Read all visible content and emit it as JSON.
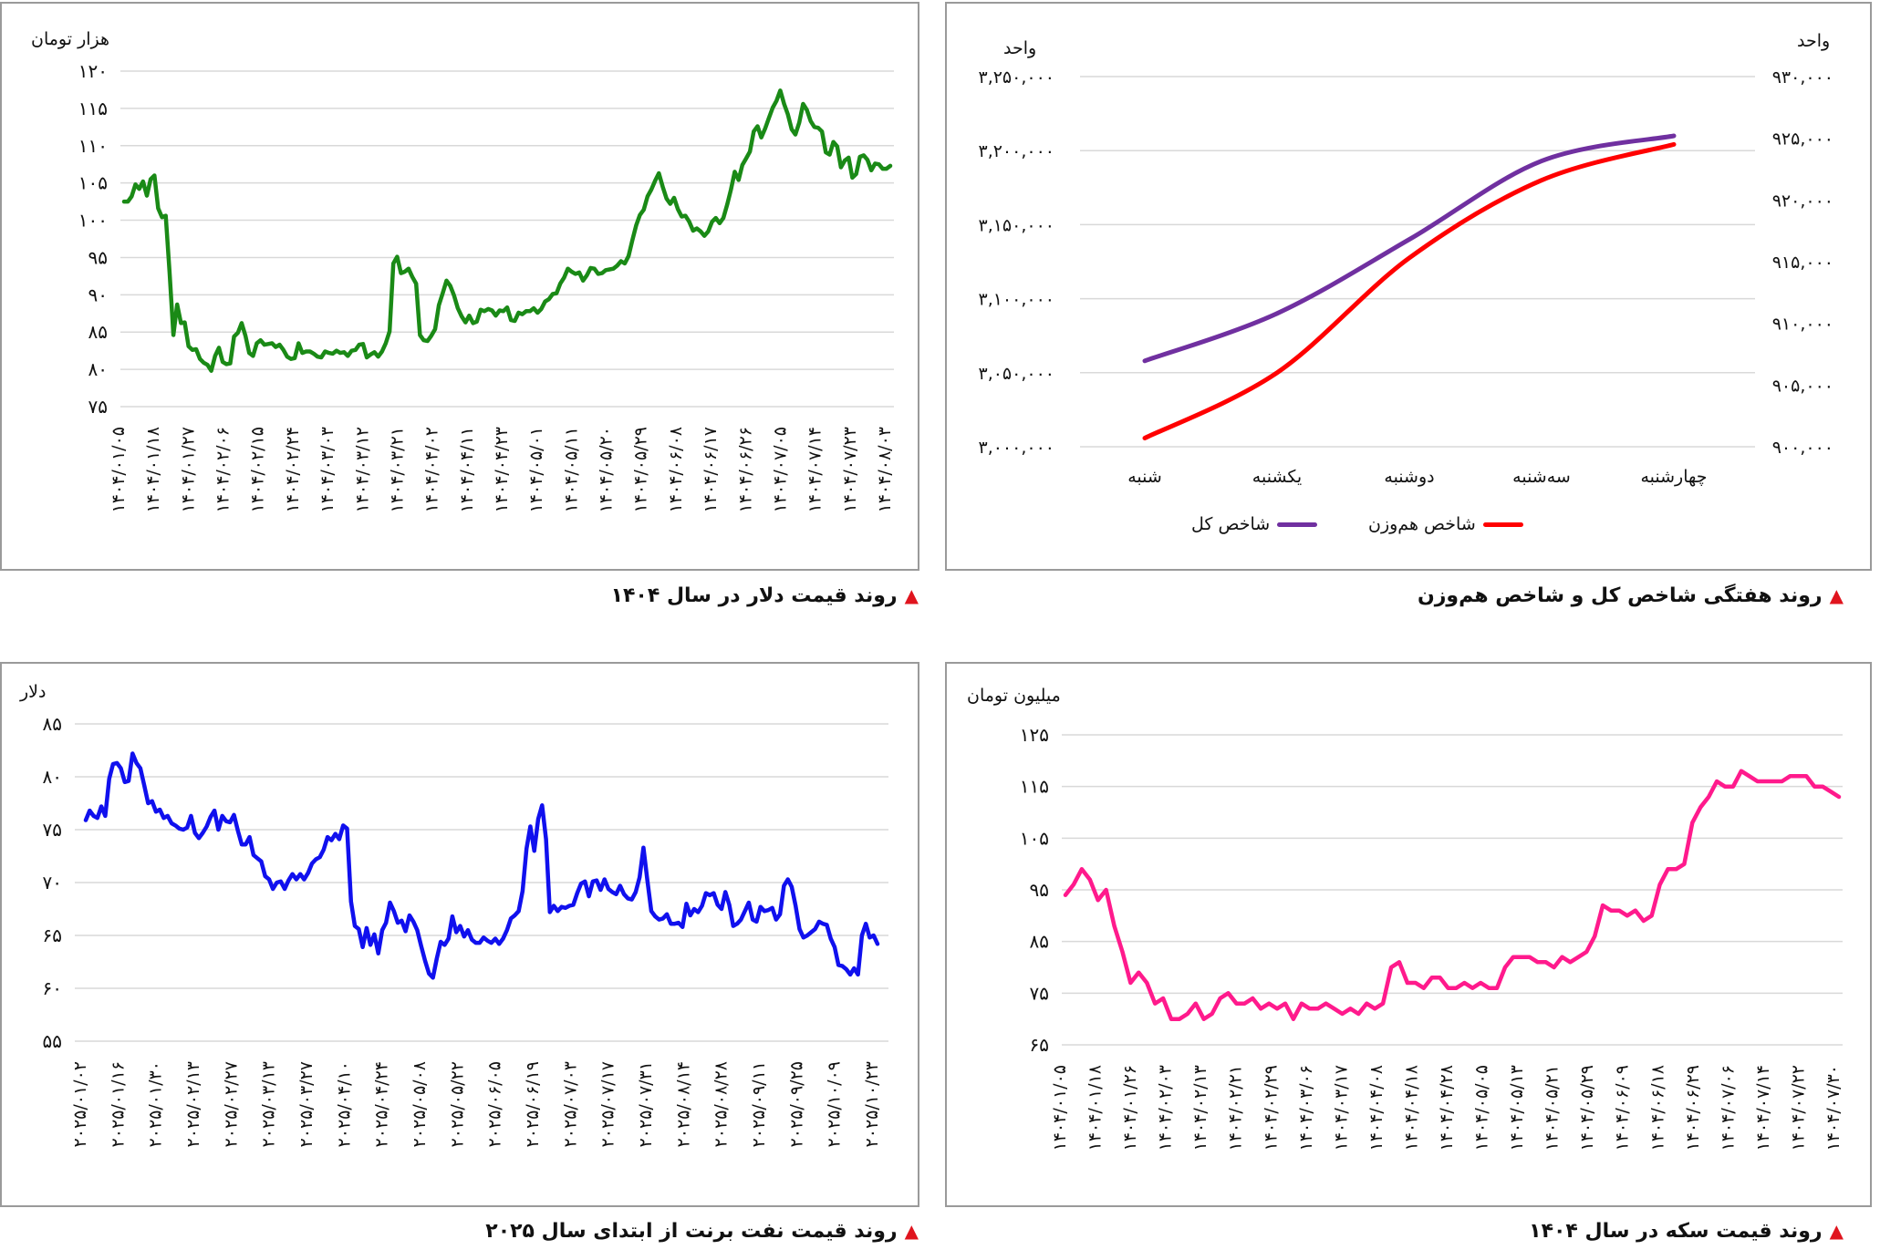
{
  "captions": {
    "index": "روند هفتگی شاخص کل و شاخص هم‌وزن",
    "dollar": "روند قیمت دلار در سال ۱۴۰۴",
    "coin": "روند قیمت سکه در سال ۱۴۰۴",
    "brent": "روند قیمت نفت برنت از ابتدای سال ۲۰۲۵"
  },
  "colors": {
    "triangle": "#e0141e",
    "purple": "#7030a0",
    "red": "#ff0000",
    "green": "#1a8a16",
    "pink": "#ff1a8c",
    "blue": "#1010ee"
  },
  "chart_data": [
    {
      "id": "index",
      "type": "line",
      "unit_left": "واحد",
      "unit_right": "واحد",
      "categories": [
        "شنبه",
        "یکشنبه",
        "دوشنبه",
        "سه‌شنبه",
        "چهارشنبه"
      ],
      "left_axis": {
        "ylim": [
          3000000,
          3250000
        ],
        "ticks": [
          "۳,۰۰۰,۰۰۰",
          "۳,۰۵۰,۰۰۰",
          "۳,۱۰۰,۰۰۰",
          "۳,۱۵۰,۰۰۰",
          "۳,۲۰۰,۰۰۰",
          "۳,۲۵۰,۰۰۰"
        ]
      },
      "right_axis": {
        "ylim": [
          900000,
          930000
        ],
        "ticks": [
          "۹۰۰,۰۰۰",
          "۹۰۵,۰۰۰",
          "۹۱۰,۰۰۰",
          "۹۱۵,۰۰۰",
          "۹۲۰,۰۰۰",
          "۹۲۵,۰۰۰",
          "۹۳۰,۰۰۰"
        ]
      },
      "series": [
        {
          "name": "شاخص کل",
          "axis": "left",
          "color": "#7030a0",
          "values": [
            3058000,
            3090000,
            3140000,
            3193000,
            3210000
          ]
        },
        {
          "name": "شاخص هم‌وزن",
          "axis": "right",
          "color": "#ff0000",
          "values": [
            900700,
            906000,
            915300,
            921600,
            924500
          ]
        }
      ]
    },
    {
      "id": "dollar",
      "type": "line",
      "unit": "هزار تومان",
      "color": "#1a8a16",
      "ylim": [
        75,
        120
      ],
      "yticks": [
        "۷۵",
        "۸۰",
        "۸۵",
        "۹۰",
        "۹۵",
        "۱۰۰",
        "۱۰۵",
        "۱۱۰",
        "۱۱۵",
        "۱۲۰"
      ],
      "xticks": [
        "۱۴۰۴/۰۱/۰۵",
        "۱۴۰۴/۰۱/۱۸",
        "۱۴۰۴/۰۱/۲۷",
        "۱۴۰۴/۰۲/۰۶",
        "۱۴۰۴/۰۲/۱۵",
        "۱۴۰۴/۰۲/۲۴",
        "۱۴۰۴/۰۳/۰۳",
        "۱۴۰۴/۰۳/۱۲",
        "۱۴۰۴/۰۳/۲۱",
        "۱۴۰۴/۰۴/۰۲",
        "۱۴۰۴/۰۴/۱۱",
        "۱۴۰۴/۰۴/۲۳",
        "۱۴۰۴/۰۵/۰۱",
        "۱۴۰۴/۰۵/۱۱",
        "۱۴۰۴/۰۵/۲۰",
        "۱۴۰۴/۰۵/۲۹",
        "۱۴۰۴/۰۶/۰۸",
        "۱۴۰۴/۰۶/۱۷",
        "۱۴۰۴/۰۶/۲۶",
        "۱۴۰۴/۰۷/۰۵",
        "۱۴۰۴/۰۷/۱۴",
        "۱۴۰۴/۰۷/۲۳",
        "۱۴۰۴/۰۸/۰۳"
      ],
      "values": [
        102.5,
        102.5,
        103.2,
        104.8,
        104.2,
        105.2,
        103.3,
        105.5,
        106.0,
        101.6,
        100.4,
        100.6,
        93.0,
        84.6,
        88.7,
        86.2,
        86.3,
        83.1,
        82.6,
        82.7,
        81.4,
        80.9,
        80.6,
        79.8,
        81.8,
        82.9,
        81.0,
        80.7,
        80.8,
        84.4,
        84.9,
        86.2,
        84.5,
        82.2,
        81.8,
        83.5,
        83.9,
        83.3,
        83.4,
        83.5,
        83.0,
        83.3,
        82.6,
        81.7,
        81.4,
        81.5,
        83.5,
        82.2,
        82.4,
        82.4,
        82.1,
        81.7,
        81.6,
        82.4,
        82.2,
        82.1,
        82.5,
        82.2,
        82.3,
        81.8,
        82.5,
        82.6,
        83.3,
        83.4,
        81.6,
        82.0,
        82.3,
        81.7,
        82.4,
        83.5,
        85.1,
        94.2,
        95.1,
        92.9,
        93.1,
        93.5,
        92.4,
        91.5,
        84.6,
        83.9,
        83.8,
        84.5,
        85.4,
        88.6,
        90.2,
        91.9,
        91.2,
        89.9,
        88.2,
        87.1,
        86.3,
        87.2,
        86.2,
        86.4,
        88.0,
        87.8,
        88.1,
        87.9,
        87.2,
        87.9,
        87.8,
        88.3,
        86.6,
        86.5,
        87.6,
        87.4,
        87.8,
        87.8,
        88.2,
        87.6,
        88.1,
        89.1,
        89.4,
        90.1,
        90.2,
        91.5,
        92.3,
        93.5,
        93.1,
        92.8,
        93.0,
        91.9,
        92.6,
        93.6,
        93.5,
        92.8,
        92.9,
        93.3,
        93.4,
        93.5,
        93.9,
        94.5,
        94.2,
        95.2,
        97.3,
        99.3,
        100.7,
        101.4,
        103.2,
        104.1,
        105.3,
        106.3,
        104.5,
        102.9,
        102.2,
        103.0,
        101.5,
        100.5,
        100.6,
        99.8,
        98.6,
        98.9,
        98.5,
        97.9,
        98.5,
        99.8,
        100.3,
        99.6,
        100.3,
        102.1,
        104.1,
        106.5,
        105.4,
        107.4,
        108.3,
        109.2,
        111.9,
        112.6,
        111.1,
        112.3,
        113.7,
        115.1,
        116.0,
        117.4,
        115.6,
        114.2,
        112.2,
        111.5,
        113.1,
        115.6,
        114.8,
        113.3,
        112.5,
        112.4,
        111.9,
        109.1,
        108.8,
        110.5,
        109.9,
        107.1,
        108.0,
        108.4,
        105.7,
        106.2,
        108.5,
        108.7,
        108.1,
        106.7,
        107.6,
        107.5,
        106.9,
        106.9,
        107.3
      ]
    },
    {
      "id": "coin",
      "type": "line",
      "unit": "میلیون تومان",
      "color": "#ff1a8c",
      "ylim": [
        65,
        125
      ],
      "yticks": [
        "۶۵",
        "۷۵",
        "۸۵",
        "۹۵",
        "۱۰۵",
        "۱۱۵",
        "۱۲۵"
      ],
      "xticks": [
        "۱۴۰۴/۰۱/۰۵",
        "۱۴۰۴/۰۱/۱۸",
        "۱۴۰۴/۰۱/۲۶",
        "۱۴۰۴/۰۲/۰۳",
        "۱۴۰۴/۰۲/۱۳",
        "۱۴۰۴/۰۲/۲۱",
        "۱۴۰۴/۰۲/۲۹",
        "۱۴۰۴/۰۳/۰۶",
        "۱۴۰۴/۰۳/۱۷",
        "۱۴۰۴/۰۴/۰۸",
        "۱۴۰۴/۰۴/۱۸",
        "۱۴۰۴/۰۴/۲۸",
        "۱۴۰۴/۰۵/۰۵",
        "۱۴۰۴/۰۵/۱۳",
        "۱۴۰۴/۰۵/۲۱",
        "۱۴۰۴/۰۵/۲۹",
        "۱۴۰۴/۰۶/۰۹",
        "۱۴۰۴/۰۶/۱۸",
        "۱۴۰۴/۰۶/۲۹",
        "۱۴۰۴/۰۷/۰۶",
        "۱۴۰۴/۰۷/۱۴",
        "۱۴۰۴/۰۷/۲۲",
        "۱۴۰۴/۰۷/۳۰"
      ],
      "values": [
        94,
        96,
        99,
        97,
        93,
        95,
        88,
        83,
        77,
        79,
        77,
        73,
        74,
        70,
        70,
        71,
        73,
        70,
        71,
        74,
        75,
        73,
        73,
        74,
        72,
        73,
        72,
        73,
        70,
        73,
        72,
        72,
        73,
        72,
        71,
        72,
        71,
        73,
        72,
        73,
        80,
        81,
        77,
        77,
        76,
        78,
        78,
        76,
        76,
        77,
        76,
        77,
        76,
        76,
        80,
        82,
        82,
        82,
        81,
        81,
        80,
        82,
        81,
        82,
        83,
        86,
        92,
        91,
        91,
        90,
        91,
        89,
        90,
        96,
        99,
        99,
        100,
        108,
        111,
        113,
        116,
        115,
        115,
        118,
        117,
        116,
        116,
        116,
        116,
        117,
        117,
        117,
        115,
        115,
        114,
        113
      ]
    },
    {
      "id": "brent",
      "type": "line",
      "unit": "دلار",
      "color": "#1010ee",
      "ylim": [
        55,
        85
      ],
      "yticks": [
        "۵۵",
        "۶۰",
        "۶۵",
        "۷۰",
        "۷۵",
        "۸۰",
        "۸۵"
      ],
      "xticks": [
        "۲۰۲۵/۰۱/۰۲",
        "۲۰۲۵/۰۱/۱۶",
        "۲۰۲۵/۰۱/۳۰",
        "۲۰۲۵/۰۲/۱۳",
        "۲۰۲۵/۰۲/۲۷",
        "۲۰۲۵/۰۳/۱۳",
        "۲۰۲۵/۰۳/۲۷",
        "۲۰۲۵/۰۴/۱۰",
        "۲۰۲۵/۰۴/۲۴",
        "۲۰۲۵/۰۵/۰۸",
        "۲۰۲۵/۰۵/۲۲",
        "۲۰۲۵/۰۶/۰۵",
        "۲۰۲۵/۰۶/۱۹",
        "۲۰۲۵/۰۷/۰۳",
        "۲۰۲۵/۰۷/۱۷",
        "۲۰۲۵/۰۷/۳۱",
        "۲۰۲۵/۰۸/۱۴",
        "۲۰۲۵/۰۸/۲۸",
        "۲۰۲۵/۰۹/۱۱",
        "۲۰۲۵/۰۹/۲۵",
        "۲۰۲۵/۱۰/۰۹",
        "۲۰۲۵/۱۰/۲۳"
      ],
      "values": [
        75.9,
        76.8,
        76.3,
        76.1,
        77.2,
        76.3,
        79.8,
        81.2,
        81.3,
        80.8,
        79.5,
        79.6,
        82.2,
        81.3,
        80.8,
        79.2,
        77.5,
        77.7,
        76.7,
        76.9,
        76.1,
        76.3,
        75.6,
        75.4,
        75.1,
        75.0,
        75.2,
        76.3,
        74.7,
        74.2,
        74.7,
        75.3,
        76.2,
        76.8,
        75.0,
        76.3,
        75.8,
        75.7,
        76.4,
        74.9,
        73.6,
        73.6,
        74.3,
        72.6,
        72.3,
        72.0,
        70.6,
        70.3,
        69.4,
        70.0,
        70.1,
        69.4,
        70.2,
        70.8,
        70.3,
        70.8,
        70.3,
        70.9,
        71.8,
        72.2,
        72.4,
        73.1,
        74.3,
        74.0,
        74.6,
        74.1,
        75.4,
        75.1,
        68.2,
        65.9,
        65.6,
        63.9,
        65.7,
        64.1,
        65.1,
        63.3,
        65.5,
        66.2,
        68.1,
        67.3,
        66.2,
        66.4,
        65.4,
        66.9,
        66.3,
        65.5,
        64.0,
        62.6,
        61.4,
        61.0,
        62.8,
        64.4,
        64.1,
        64.7,
        66.8,
        65.3,
        65.9,
        64.9,
        65.5,
        64.6,
        64.3,
        64.3,
        64.8,
        64.5,
        64.3,
        64.7,
        64.2,
        64.7,
        65.5,
        66.6,
        66.9,
        67.3,
        69.2,
        73.2,
        75.3,
        73.0,
        76.0,
        77.3,
        74.1,
        67.2,
        67.8,
        67.3,
        67.7,
        67.6,
        67.8,
        67.9,
        69.0,
        69.9,
        70.1,
        68.7,
        70.1,
        70.2,
        69.3,
        70.3,
        69.4,
        69.1,
        68.9,
        69.7,
        68.9,
        68.5,
        68.4,
        69.1,
        70.5,
        73.3,
        70.2,
        67.3,
        66.8,
        66.5,
        66.6,
        67.0,
        66.1,
        66.1,
        66.2,
        65.8,
        68.0,
        66.9,
        67.5,
        67.2,
        67.8,
        69.0,
        68.8,
        69.0,
        67.9,
        67.5,
        69.1,
        67.9,
        65.9,
        66.1,
        66.5,
        67.3,
        68.1,
        66.5,
        66.3,
        67.7,
        67.3,
        67.4,
        67.6,
        66.5,
        67.0,
        69.7,
        70.3,
        69.6,
        67.8,
        65.6,
        64.8,
        65.0,
        65.3,
        65.6,
        66.3,
        66.1,
        66.0,
        64.7,
        63.9,
        62.2,
        62.1,
        61.8,
        61.3,
        61.9,
        61.3,
        65.0,
        66.1,
        64.8,
        65.0,
        64.2
      ]
    }
  ]
}
